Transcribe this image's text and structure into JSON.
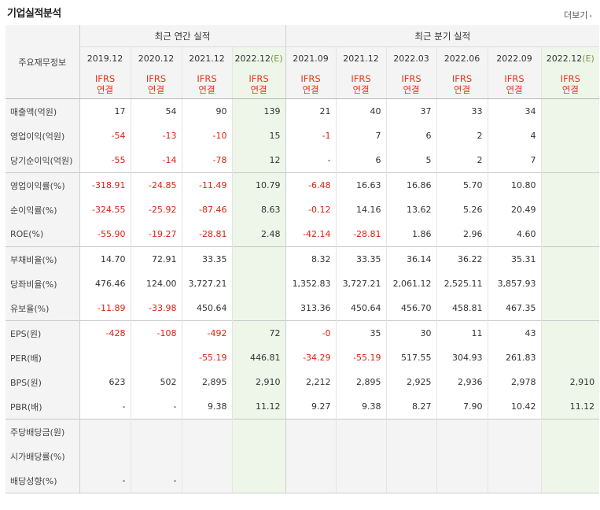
{
  "header": {
    "title": "기업실적분석",
    "more_label": "더보기"
  },
  "table": {
    "corner_label": "주요재무정보",
    "groups": {
      "annual": "최근 연간 실적",
      "quarterly": "최근 분기 실적"
    },
    "periods": [
      {
        "label": "2019.12",
        "est": false
      },
      {
        "label": "2020.12",
        "est": false
      },
      {
        "label": "2021.12",
        "est": false
      },
      {
        "label": "2022.12",
        "est": true
      },
      {
        "label": "2021.09",
        "est": false
      },
      {
        "label": "2021.12",
        "est": false
      },
      {
        "label": "2022.03",
        "est": false
      },
      {
        "label": "2022.06",
        "est": false
      },
      {
        "label": "2022.09",
        "est": false
      },
      {
        "label": "2022.12",
        "est": true
      }
    ],
    "est_mark": "(E)",
    "ifrs_line1": "IFRS",
    "ifrs_line2": "연결",
    "rows": [
      {
        "label": "매출액(억원)",
        "values": [
          "17",
          "54",
          "90",
          "139",
          "21",
          "40",
          "37",
          "33",
          "34",
          ""
        ]
      },
      {
        "label": "영업이익(억원)",
        "values": [
          "-54",
          "-13",
          "-10",
          "15",
          "-1",
          "7",
          "6",
          "2",
          "4",
          ""
        ]
      },
      {
        "label": "당기순이익(억원)",
        "values": [
          "-55",
          "-14",
          "-78",
          "12",
          "-",
          "6",
          "5",
          "2",
          "7",
          ""
        ]
      },
      {
        "label": "영업이익률(%)",
        "values": [
          "-318.91",
          "-24.85",
          "-11.49",
          "10.79",
          "-6.48",
          "16.63",
          "16.86",
          "5.70",
          "10.80",
          ""
        ]
      },
      {
        "label": "순이익률(%)",
        "values": [
          "-324.55",
          "-25.92",
          "-87.46",
          "8.63",
          "-0.12",
          "14.16",
          "13.62",
          "5.26",
          "20.49",
          ""
        ]
      },
      {
        "label": "ROE(%)",
        "values": [
          "-55.90",
          "-19.27",
          "-28.81",
          "2.48",
          "-42.14",
          "-28.81",
          "1.86",
          "2.96",
          "4.60",
          ""
        ]
      },
      {
        "label": "부채비율(%)",
        "values": [
          "14.70",
          "72.91",
          "33.35",
          "",
          "8.32",
          "33.35",
          "36.14",
          "36.22",
          "35.31",
          ""
        ]
      },
      {
        "label": "당좌비율(%)",
        "values": [
          "476.46",
          "124.00",
          "3,727.21",
          "",
          "1,352.83",
          "3,727.21",
          "2,061.12",
          "2,525.11",
          "3,857.93",
          ""
        ]
      },
      {
        "label": "유보율(%)",
        "values": [
          "-11.89",
          "-33.98",
          "450.64",
          "",
          "313.36",
          "450.64",
          "456.70",
          "458.81",
          "467.35",
          ""
        ]
      },
      {
        "label": "EPS(원)",
        "values": [
          "-428",
          "-108",
          "-492",
          "72",
          "-0",
          "35",
          "30",
          "11",
          "43",
          ""
        ]
      },
      {
        "label": "PER(배)",
        "values": [
          "",
          "",
          "-55.19",
          "446.81",
          "-34.29",
          "-55.19",
          "517.55",
          "304.93",
          "261.83",
          ""
        ]
      },
      {
        "label": "BPS(원)",
        "values": [
          "623",
          "502",
          "2,895",
          "2,910",
          "2,212",
          "2,895",
          "2,925",
          "2,936",
          "2,978",
          "2,910"
        ]
      },
      {
        "label": "PBR(배)",
        "values": [
          "-",
          "-",
          "9.38",
          "11.12",
          "9.27",
          "9.38",
          "8.27",
          "7.90",
          "10.42",
          "11.12"
        ]
      },
      {
        "label": "주당배당금(원)",
        "values": [
          "",
          "",
          "",
          "",
          "",
          "",
          "",
          "",
          "",
          ""
        ]
      },
      {
        "label": "시가배당률(%)",
        "values": [
          "",
          "",
          "",
          "",
          "",
          "",
          "",
          "",
          "",
          ""
        ]
      },
      {
        "label": "배당성향(%)",
        "values": [
          "-",
          "-",
          "",
          "",
          "",
          "",
          "",
          "",
          "",
          ""
        ]
      }
    ]
  }
}
